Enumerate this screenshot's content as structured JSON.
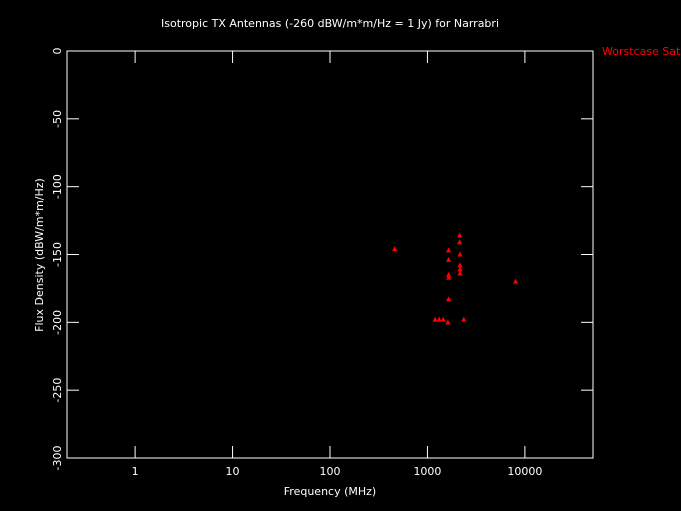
{
  "chart_data": {
    "type": "scatter",
    "title": "Isotropic TX Antennas (-260 dBW/m*m/Hz = 1 Jy) for Narrabri",
    "x_label": "Frequency (MHz)",
    "y_label": "Flux Density (dBW/m*m/Hz)",
    "xscale": "log",
    "xlim": [
      0.2,
      50000
    ],
    "xticks": [
      1,
      10,
      100,
      1000,
      10000
    ],
    "ylim": [
      -300,
      0
    ],
    "yticks": [
      0,
      -50,
      -100,
      -150,
      -200,
      -250,
      -300
    ],
    "legend": "top-right-outside",
    "series": [
      {
        "name": "Worstcase Sats",
        "color": "#ff0000",
        "x": [
          461,
          1200,
          1320,
          1450,
          1620,
          1650,
          1650,
          1650,
          1650,
          1650,
          2140,
          2140,
          2160,
          2160,
          2160,
          2160,
          2360,
          8020
        ],
        "values": [
          -146,
          -198,
          -198,
          -198,
          -200,
          -147,
          -154,
          -165,
          -167,
          -183,
          -136,
          -141,
          -150,
          -158,
          -161,
          -164,
          -198,
          -170
        ]
      }
    ]
  }
}
